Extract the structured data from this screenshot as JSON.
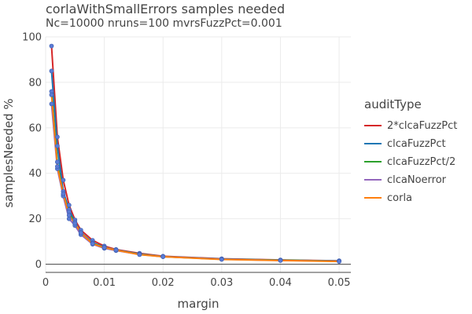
{
  "chart_data": {
    "type": "line",
    "title": "corlaWithSmallErrors samples needed",
    "subtitle": "Nc=10000 nruns=100 mvrsFuzzPct=0.001",
    "xlabel": "margin",
    "ylabel": "samplesNeeded %",
    "xlim": [
      0,
      0.052
    ],
    "ylim": [
      0,
      100
    ],
    "x_ticks": [
      "0",
      "0.01",
      "0.02",
      "0.03",
      "0.04",
      "0.05"
    ],
    "x_tick_values": [
      0,
      0.01,
      0.02,
      0.03,
      0.04,
      0.05
    ],
    "y_ticks": [
      "0",
      "20",
      "40",
      "60",
      "80",
      "100"
    ],
    "y_tick_values": [
      0,
      20,
      40,
      60,
      80,
      100
    ],
    "grid": true,
    "legend_title": "auditType",
    "legend_position": "right",
    "x": [
      0.001,
      0.002,
      0.003,
      0.004,
      0.005,
      0.006,
      0.008,
      0.01,
      0.012,
      0.016,
      0.02,
      0.03,
      0.04,
      0.05
    ],
    "series": [
      {
        "name": "2*clcaFuzzPct",
        "color": "#d62728",
        "values": [
          96,
          56,
          37,
          26,
          19.5,
          15,
          10.5,
          8,
          6.5,
          4.8,
          3.5,
          2.4,
          1.9,
          1.5
        ]
      },
      {
        "name": "clcaFuzzPct",
        "color": "#1f77b4",
        "values": [
          85,
          52,
          32,
          24,
          18.5,
          14,
          9.5,
          7.5,
          6.3,
          4.5,
          3.4,
          2.3,
          1.8,
          1.4
        ]
      },
      {
        "name": "clcaFuzzPct/2",
        "color": "#2ca02c",
        "values": [
          76,
          45,
          30.5,
          23,
          17.5,
          13.5,
          9.2,
          7.2,
          6.1,
          4.4,
          3.3,
          2.2,
          1.8,
          1.4
        ]
      },
      {
        "name": "clcaNoerror",
        "color": "#9467bd",
        "values": [
          70.5,
          42,
          30,
          20,
          17,
          13,
          8.8,
          7,
          6,
          4.3,
          3.3,
          2.2,
          1.7,
          1.3
        ]
      },
      {
        "name": "corla",
        "color": "#ff7f0e",
        "values": [
          74.5,
          43,
          31,
          21.5,
          18,
          13.8,
          9,
          7.3,
          6.2,
          4.2,
          3.3,
          2.1,
          1.6,
          1.2
        ]
      }
    ]
  }
}
